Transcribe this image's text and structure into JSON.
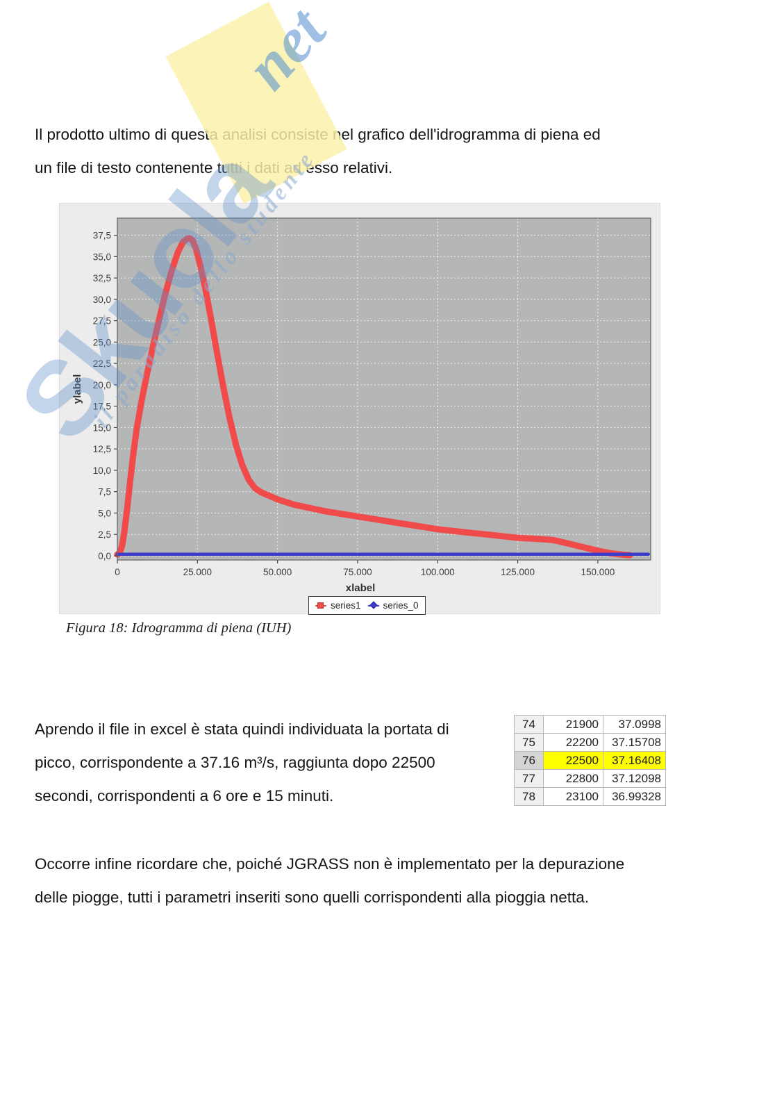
{
  "watermark": {
    "brand": "Skuola",
    "brand_suffix": "net",
    "tagline": "il paradiso dello studente"
  },
  "paragraphs": {
    "p1": {
      "lines": [
        "Il prodotto ultimo di questa analisi consiste nel grafico dell'idrogramma di piena ed",
        "un file di testo contenente tutti i dati ad esso relativi."
      ]
    },
    "p2": {
      "lines": [
        "Aprendo il file in excel è stata quindi individuata la portata di",
        "picco, corrispondente a 37.16 m³/s, raggiunta dopo 22500",
        "secondi, corrispondenti a 6 ore e 15 minuti."
      ]
    },
    "p3": {
      "lines": [
        "Occorre infine ricordare che, poiché JGRASS non è implementato per la depurazione",
        "delle piogge, tutti i parametri inseriti sono quelli corrispondenti alla pioggia netta."
      ]
    }
  },
  "figure": {
    "caption": "Figura 18: Idrogramma di piena (IUH)"
  },
  "chart_data": {
    "type": "line",
    "title": "",
    "xlabel": "xlabel",
    "ylabel": "ylabel",
    "xlim": [
      0,
      166500
    ],
    "ylim": [
      -0.49,
      39.5
    ],
    "grid": true,
    "legend_position": "bottom-center",
    "plot_bg": "#b5b6b6",
    "panel_bg": "#ececec",
    "x_ticks": [
      0,
      25000,
      50000,
      75000,
      100000,
      125000,
      150000
    ],
    "x_tick_labels": [
      "0",
      "25.000",
      "50.000",
      "75.000",
      "100.000",
      "125.000",
      "150.000"
    ],
    "y_ticks": [
      0,
      2.5,
      5,
      7.5,
      10,
      12.5,
      15,
      17.5,
      20,
      22.5,
      25,
      27.5,
      30,
      32.5,
      35,
      37.5
    ],
    "y_tick_labels": [
      "0,0",
      "2,5",
      "5,0",
      "7,5",
      "10,0",
      "12,5",
      "15,0",
      "17,5",
      "20,0",
      "22,5",
      "25,0",
      "27,5",
      "30,0",
      "32,5",
      "35,0",
      "37,5"
    ],
    "series": [
      {
        "name": "series1",
        "color": "#f04a4a",
        "marker": "square",
        "stroke_width": 9,
        "points": [
          [
            0,
            0.15
          ],
          [
            800,
            0.4
          ],
          [
            1500,
            1.2
          ],
          [
            2200,
            2.8
          ],
          [
            3000,
            5.3
          ],
          [
            4000,
            8.8
          ],
          [
            5000,
            12.0
          ],
          [
            6000,
            14.8
          ],
          [
            7500,
            18.0
          ],
          [
            9000,
            20.8
          ],
          [
            11000,
            24.3
          ],
          [
            13000,
            27.6
          ],
          [
            15000,
            30.7
          ],
          [
            17000,
            33.4
          ],
          [
            19000,
            35.6
          ],
          [
            20500,
            36.7
          ],
          [
            21800,
            37.1
          ],
          [
            22500,
            37.16
          ],
          [
            23500,
            36.9
          ],
          [
            24500,
            36.0
          ],
          [
            26000,
            33.8
          ],
          [
            27500,
            31.2
          ],
          [
            29000,
            28.2
          ],
          [
            31000,
            24.0
          ],
          [
            33000,
            19.9
          ],
          [
            35000,
            16.2
          ],
          [
            37000,
            13.0
          ],
          [
            39000,
            10.6
          ],
          [
            41000,
            8.9
          ],
          [
            43000,
            7.9
          ],
          [
            45000,
            7.4
          ],
          [
            47500,
            7.0
          ],
          [
            50000,
            6.6
          ],
          [
            55000,
            6.0
          ],
          [
            60000,
            5.6
          ],
          [
            65000,
            5.2
          ],
          [
            70000,
            4.9
          ],
          [
            75000,
            4.6
          ],
          [
            80000,
            4.3
          ],
          [
            85000,
            4.0
          ],
          [
            90000,
            3.7
          ],
          [
            95000,
            3.4
          ],
          [
            100000,
            3.1
          ],
          [
            105000,
            2.9
          ],
          [
            110000,
            2.7
          ],
          [
            115000,
            2.5
          ],
          [
            120000,
            2.3
          ],
          [
            125000,
            2.1
          ],
          [
            130000,
            2.0
          ],
          [
            136000,
            1.85
          ],
          [
            140000,
            1.5
          ],
          [
            145000,
            1.05
          ],
          [
            150000,
            0.6
          ],
          [
            154000,
            0.3
          ],
          [
            158000,
            0.12
          ],
          [
            160000,
            0.08
          ]
        ]
      },
      {
        "name": "series_0",
        "color": "#3c3ccc",
        "marker": "diamond",
        "stroke_width": 4.5,
        "points": [
          [
            0,
            0.18
          ],
          [
            165800,
            0.18
          ]
        ]
      }
    ]
  },
  "excel_table": {
    "highlight_color": "#ffff00",
    "rows": [
      {
        "n": "74",
        "t": "21900",
        "q": "37.0998",
        "hl": false
      },
      {
        "n": "75",
        "t": "22200",
        "q": "37.15708",
        "hl": false
      },
      {
        "n": "76",
        "t": "22500",
        "q": "37.16408",
        "hl": true
      },
      {
        "n": "77",
        "t": "22800",
        "q": "37.12098",
        "hl": false
      },
      {
        "n": "78",
        "t": "23100",
        "q": "36.99328",
        "hl": false
      }
    ]
  }
}
